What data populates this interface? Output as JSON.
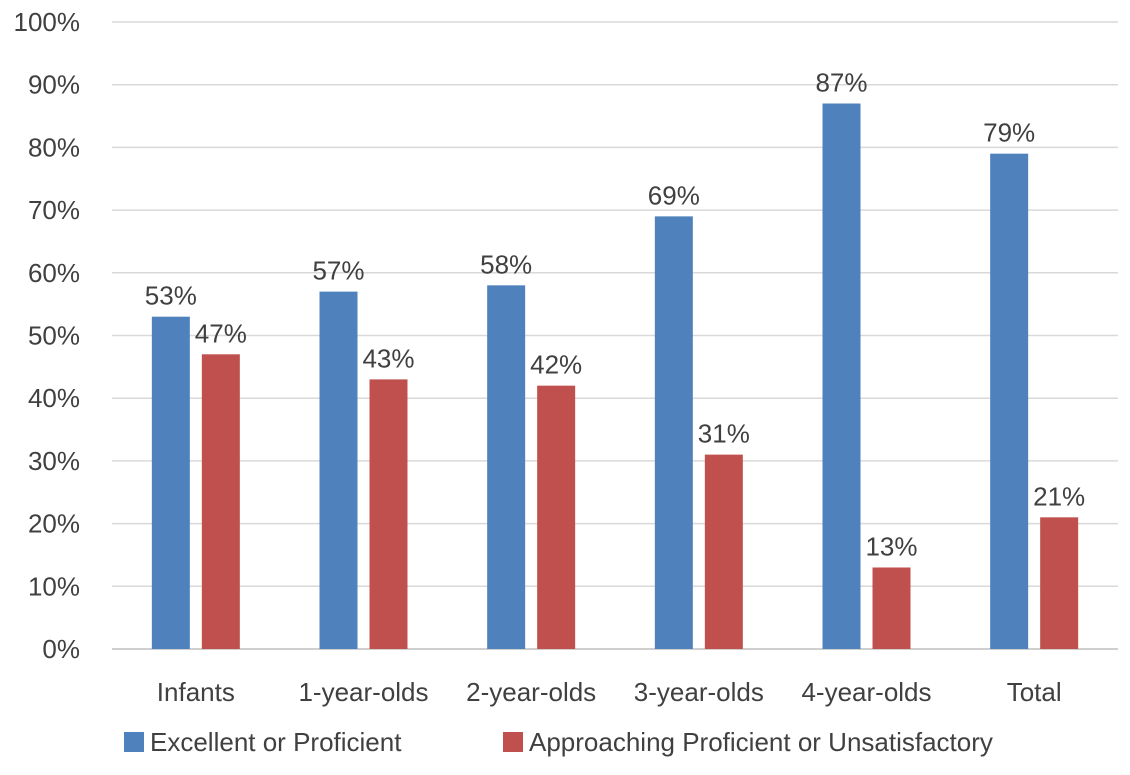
{
  "chart_data": {
    "type": "bar",
    "title": "",
    "xlabel": "",
    "ylabel": "",
    "categories": [
      "Infants",
      "1-year-olds",
      "2-year-olds",
      "3-year-olds",
      "4-year-olds",
      "Total"
    ],
    "series": [
      {
        "name": "Excellent or Proficient",
        "color": "#4f81bd",
        "values": [
          53,
          57,
          58,
          69,
          87,
          79
        ],
        "labels": [
          "53%",
          "57%",
          "58%",
          "69%",
          "87%",
          "79%"
        ]
      },
      {
        "name": "Approaching Proficient or Unsatisfactory",
        "color": "#c0504d",
        "values": [
          47,
          43,
          42,
          31,
          13,
          21
        ],
        "labels": [
          "47%",
          "43%",
          "42%",
          "31%",
          "13%",
          "21%"
        ]
      }
    ],
    "ylim": [
      0,
      100
    ],
    "yticks": [
      0,
      10,
      20,
      30,
      40,
      50,
      60,
      70,
      80,
      90,
      100
    ],
    "ytick_labels": [
      "0%",
      "10%",
      "20%",
      "30%",
      "40%",
      "50%",
      "60%",
      "70%",
      "80%",
      "90%",
      "100%"
    ],
    "grid": true,
    "legend_position": "bottom"
  }
}
